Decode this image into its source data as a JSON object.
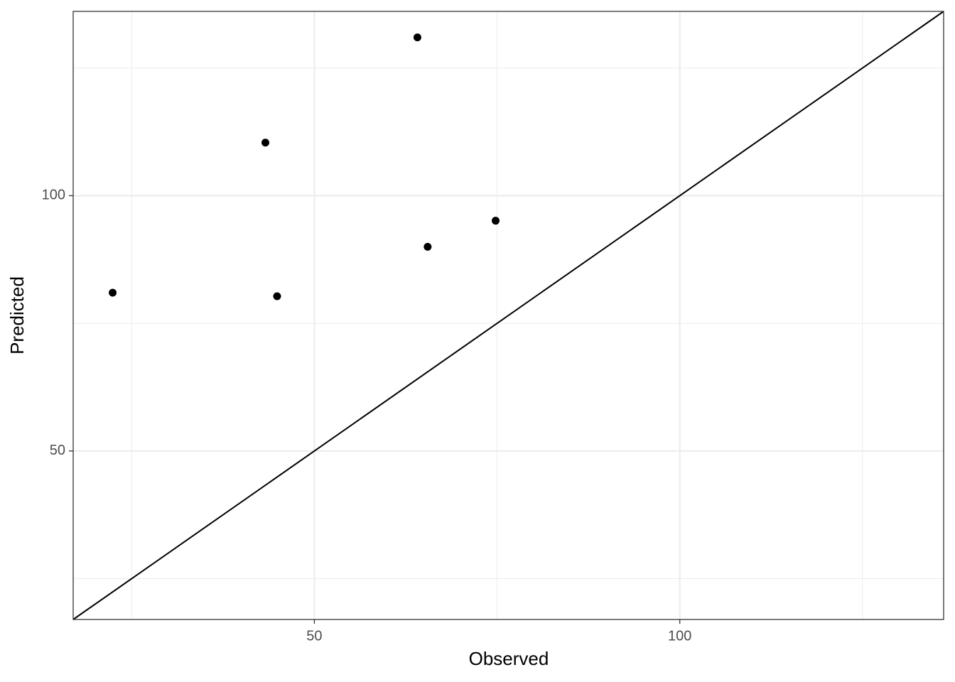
{
  "chart_data": {
    "type": "scatter",
    "x_label": "Observed",
    "y_label": "Predicted",
    "x": [
      22.4,
      43.3,
      44.9,
      64.1,
      65.5,
      74.8
    ],
    "values": [
      81.0,
      110.4,
      80.3,
      131.0,
      90.0,
      95.1
    ],
    "color": "#000000",
    "xlim": [
      17,
      136.1
    ],
    "ylim": [
      17,
      136.1
    ],
    "xticks": [
      50,
      100
    ],
    "yticks": [
      50,
      100
    ],
    "xminorticks": [
      25,
      75,
      125
    ],
    "yminorticks": [
      25,
      75,
      125
    ],
    "grid": true,
    "identity_line": true
  }
}
